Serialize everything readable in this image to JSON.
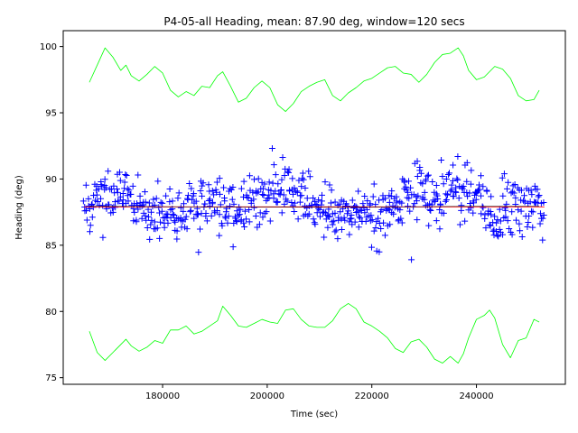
{
  "chart_data": {
    "type": "scatter",
    "title": "P4-05-all Heading, mean: 87.90 deg, window=120 secs",
    "xlabel": "Time (sec)",
    "ylabel": "Heading (deg)",
    "xlim": [
      161000,
      257000
    ],
    "ylim": [
      74.5,
      101.2
    ],
    "xticks": [
      180000,
      200000,
      220000,
      240000
    ],
    "xtick_labels": [
      "180000",
      "200000",
      "220000",
      "240000"
    ],
    "yticks": [
      75,
      80,
      85,
      90,
      95,
      100
    ],
    "ytick_labels": [
      "75",
      "80",
      "85",
      "90",
      "95",
      "100"
    ],
    "grid": false,
    "x_range_data": [
      165000,
      253000
    ],
    "colors": {
      "points": "#0000ff",
      "mean": "#ff0000",
      "moving_mean": "#000000",
      "bounds": "#00ff00"
    },
    "series": [
      {
        "name": "heading samples",
        "kind": "scatter",
        "marker": "+",
        "color": "#0000ff",
        "anchor_x": [
          165000,
          168000,
          172000,
          175000,
          178000,
          182000,
          186000,
          190000,
          194000,
          198000,
          202000,
          205000,
          209000,
          213000,
          217000,
          221000,
          224000,
          228000,
          232000,
          236000,
          240000,
          243000,
          247000,
          250000,
          253000
        ],
        "anchor_mean": [
          87.5,
          88.6,
          89.2,
          88.0,
          87.3,
          87.6,
          87.9,
          88.4,
          87.4,
          88.4,
          89.4,
          88.9,
          88.1,
          87.3,
          87.6,
          87.1,
          87.8,
          89.1,
          88.6,
          89.2,
          89.0,
          86.8,
          88.3,
          88.1,
          87.6
        ],
        "count": 700,
        "spread_sd": 1.0
      },
      {
        "name": "overall mean",
        "kind": "line",
        "color": "#ff0000",
        "value": 87.9
      },
      {
        "name": "moving mean",
        "kind": "line",
        "color": "#000000",
        "x": [
          166000,
          176000,
          186000,
          196000,
          206000,
          216000,
          226000,
          236000,
          246000,
          252000
        ],
        "y": [
          87.95,
          87.92,
          87.9,
          87.88,
          87.87,
          87.86,
          87.9,
          87.93,
          87.95,
          87.95
        ]
      },
      {
        "name": "upper bound",
        "kind": "line",
        "color": "#00ff00",
        "x": [
          166000,
          167500,
          169000,
          170500,
          172000,
          173000,
          174000,
          175500,
          177000,
          178500,
          180000,
          181500,
          183000,
          184500,
          186000,
          187500,
          189000,
          190500,
          191500,
          193000,
          194500,
          196000,
          197500,
          199000,
          200500,
          202000,
          203500,
          205000,
          206500,
          208000,
          209500,
          211000,
          212500,
          214000,
          215500,
          217000,
          218500,
          220000,
          221500,
          223000,
          224500,
          226000,
          227500,
          229000,
          230500,
          232000,
          233500,
          235000,
          236500,
          237500,
          238500,
          240000,
          241500,
          242500,
          243500,
          245000,
          246500,
          248000,
          249500,
          251000,
          252000
        ],
        "y": [
          97.3,
          98.6,
          99.9,
          99.2,
          98.2,
          98.6,
          97.8,
          97.4,
          97.9,
          98.5,
          98.0,
          96.7,
          96.2,
          96.6,
          96.3,
          97.0,
          96.9,
          97.8,
          98.1,
          97.0,
          95.8,
          96.1,
          96.9,
          97.4,
          96.9,
          95.6,
          95.1,
          95.7,
          96.6,
          97.0,
          97.3,
          97.5,
          96.3,
          95.9,
          96.5,
          96.9,
          97.4,
          97.6,
          98.0,
          98.4,
          98.5,
          98.0,
          97.9,
          97.3,
          97.9,
          98.8,
          99.4,
          99.5,
          99.9,
          99.3,
          98.2,
          97.5,
          97.7,
          98.1,
          98.5,
          98.3,
          97.6,
          96.3,
          95.9,
          96.0,
          96.7
        ]
      },
      {
        "name": "lower bound",
        "kind": "line",
        "color": "#00ff00",
        "x": [
          166000,
          167500,
          169000,
          170500,
          172000,
          173000,
          174000,
          175500,
          177000,
          178500,
          180000,
          181500,
          183000,
          184500,
          186000,
          187500,
          189000,
          190500,
          191500,
          193000,
          194500,
          196000,
          197500,
          199000,
          200500,
          202000,
          203500,
          205000,
          206500,
          208000,
          209500,
          211000,
          212500,
          214000,
          215500,
          217000,
          218500,
          220000,
          221500,
          223000,
          224500,
          226000,
          227500,
          229000,
          230500,
          232000,
          233500,
          235000,
          236500,
          237500,
          238500,
          240000,
          241500,
          242500,
          243500,
          245000,
          246500,
          248000,
          249500,
          251000,
          252000
        ],
        "y": [
          78.5,
          76.9,
          76.3,
          76.9,
          77.5,
          77.9,
          77.4,
          77.0,
          77.3,
          77.8,
          77.6,
          78.6,
          78.6,
          78.9,
          78.3,
          78.5,
          78.9,
          79.3,
          80.4,
          79.7,
          78.9,
          78.8,
          79.1,
          79.4,
          79.2,
          79.1,
          80.1,
          80.2,
          79.4,
          78.9,
          78.8,
          78.8,
          79.3,
          80.2,
          80.6,
          80.2,
          79.2,
          78.9,
          78.5,
          78.0,
          77.2,
          76.9,
          77.7,
          77.9,
          77.3,
          76.4,
          76.1,
          76.6,
          76.1,
          76.8,
          78.0,
          79.4,
          79.7,
          80.1,
          79.5,
          77.5,
          76.5,
          77.8,
          78.0,
          79.4,
          79.2
        ]
      }
    ]
  }
}
